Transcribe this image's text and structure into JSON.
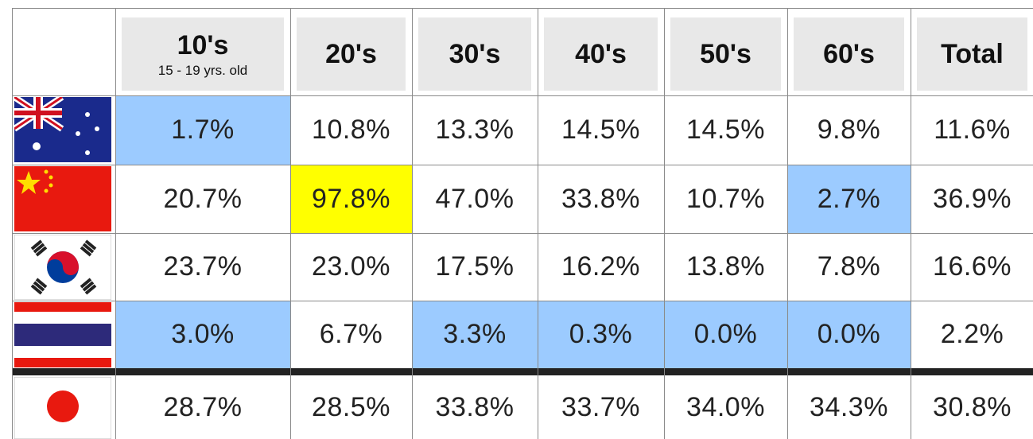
{
  "table": {
    "header": [
      {
        "label": "10's",
        "sublabel": "15 - 19 yrs. old"
      },
      {
        "label": "20's"
      },
      {
        "label": "30's"
      },
      {
        "label": "40's"
      },
      {
        "label": "50's"
      },
      {
        "label": "60's"
      },
      {
        "label": "Total"
      }
    ],
    "rows": [
      {
        "values": [
          "1.7%",
          "10.8%",
          "13.3%",
          "14.5%",
          "14.5%",
          "9.8%",
          "11.6%"
        ],
        "highlight": [
          "#9ccbff",
          null,
          null,
          null,
          null,
          null,
          null
        ]
      },
      {
        "values": [
          "20.7%",
          "97.8%",
          "47.0%",
          "33.8%",
          "10.7%",
          "2.7%",
          "36.9%"
        ],
        "highlight": [
          null,
          "#ffff00",
          null,
          null,
          null,
          "#9ccbff",
          null
        ]
      },
      {
        "values": [
          "23.7%",
          "23.0%",
          "17.5%",
          "16.2%",
          "13.8%",
          "7.8%",
          "16.6%"
        ],
        "highlight": [
          null,
          null,
          null,
          null,
          null,
          null,
          null
        ]
      },
      {
        "values": [
          "3.0%",
          "6.7%",
          "3.3%",
          "0.3%",
          "0.0%",
          "0.0%",
          "2.2%"
        ],
        "highlight": [
          "#9ccbff",
          null,
          "#9ccbff",
          "#9ccbff",
          "#9ccbff",
          "#9ccbff",
          null
        ]
      },
      {
        "values": [
          "28.7%",
          "28.5%",
          "33.8%",
          "33.7%",
          "34.0%",
          "34.3%",
          "30.8%"
        ],
        "highlight": [
          null,
          null,
          null,
          null,
          null,
          null,
          null
        ]
      }
    ]
  }
}
